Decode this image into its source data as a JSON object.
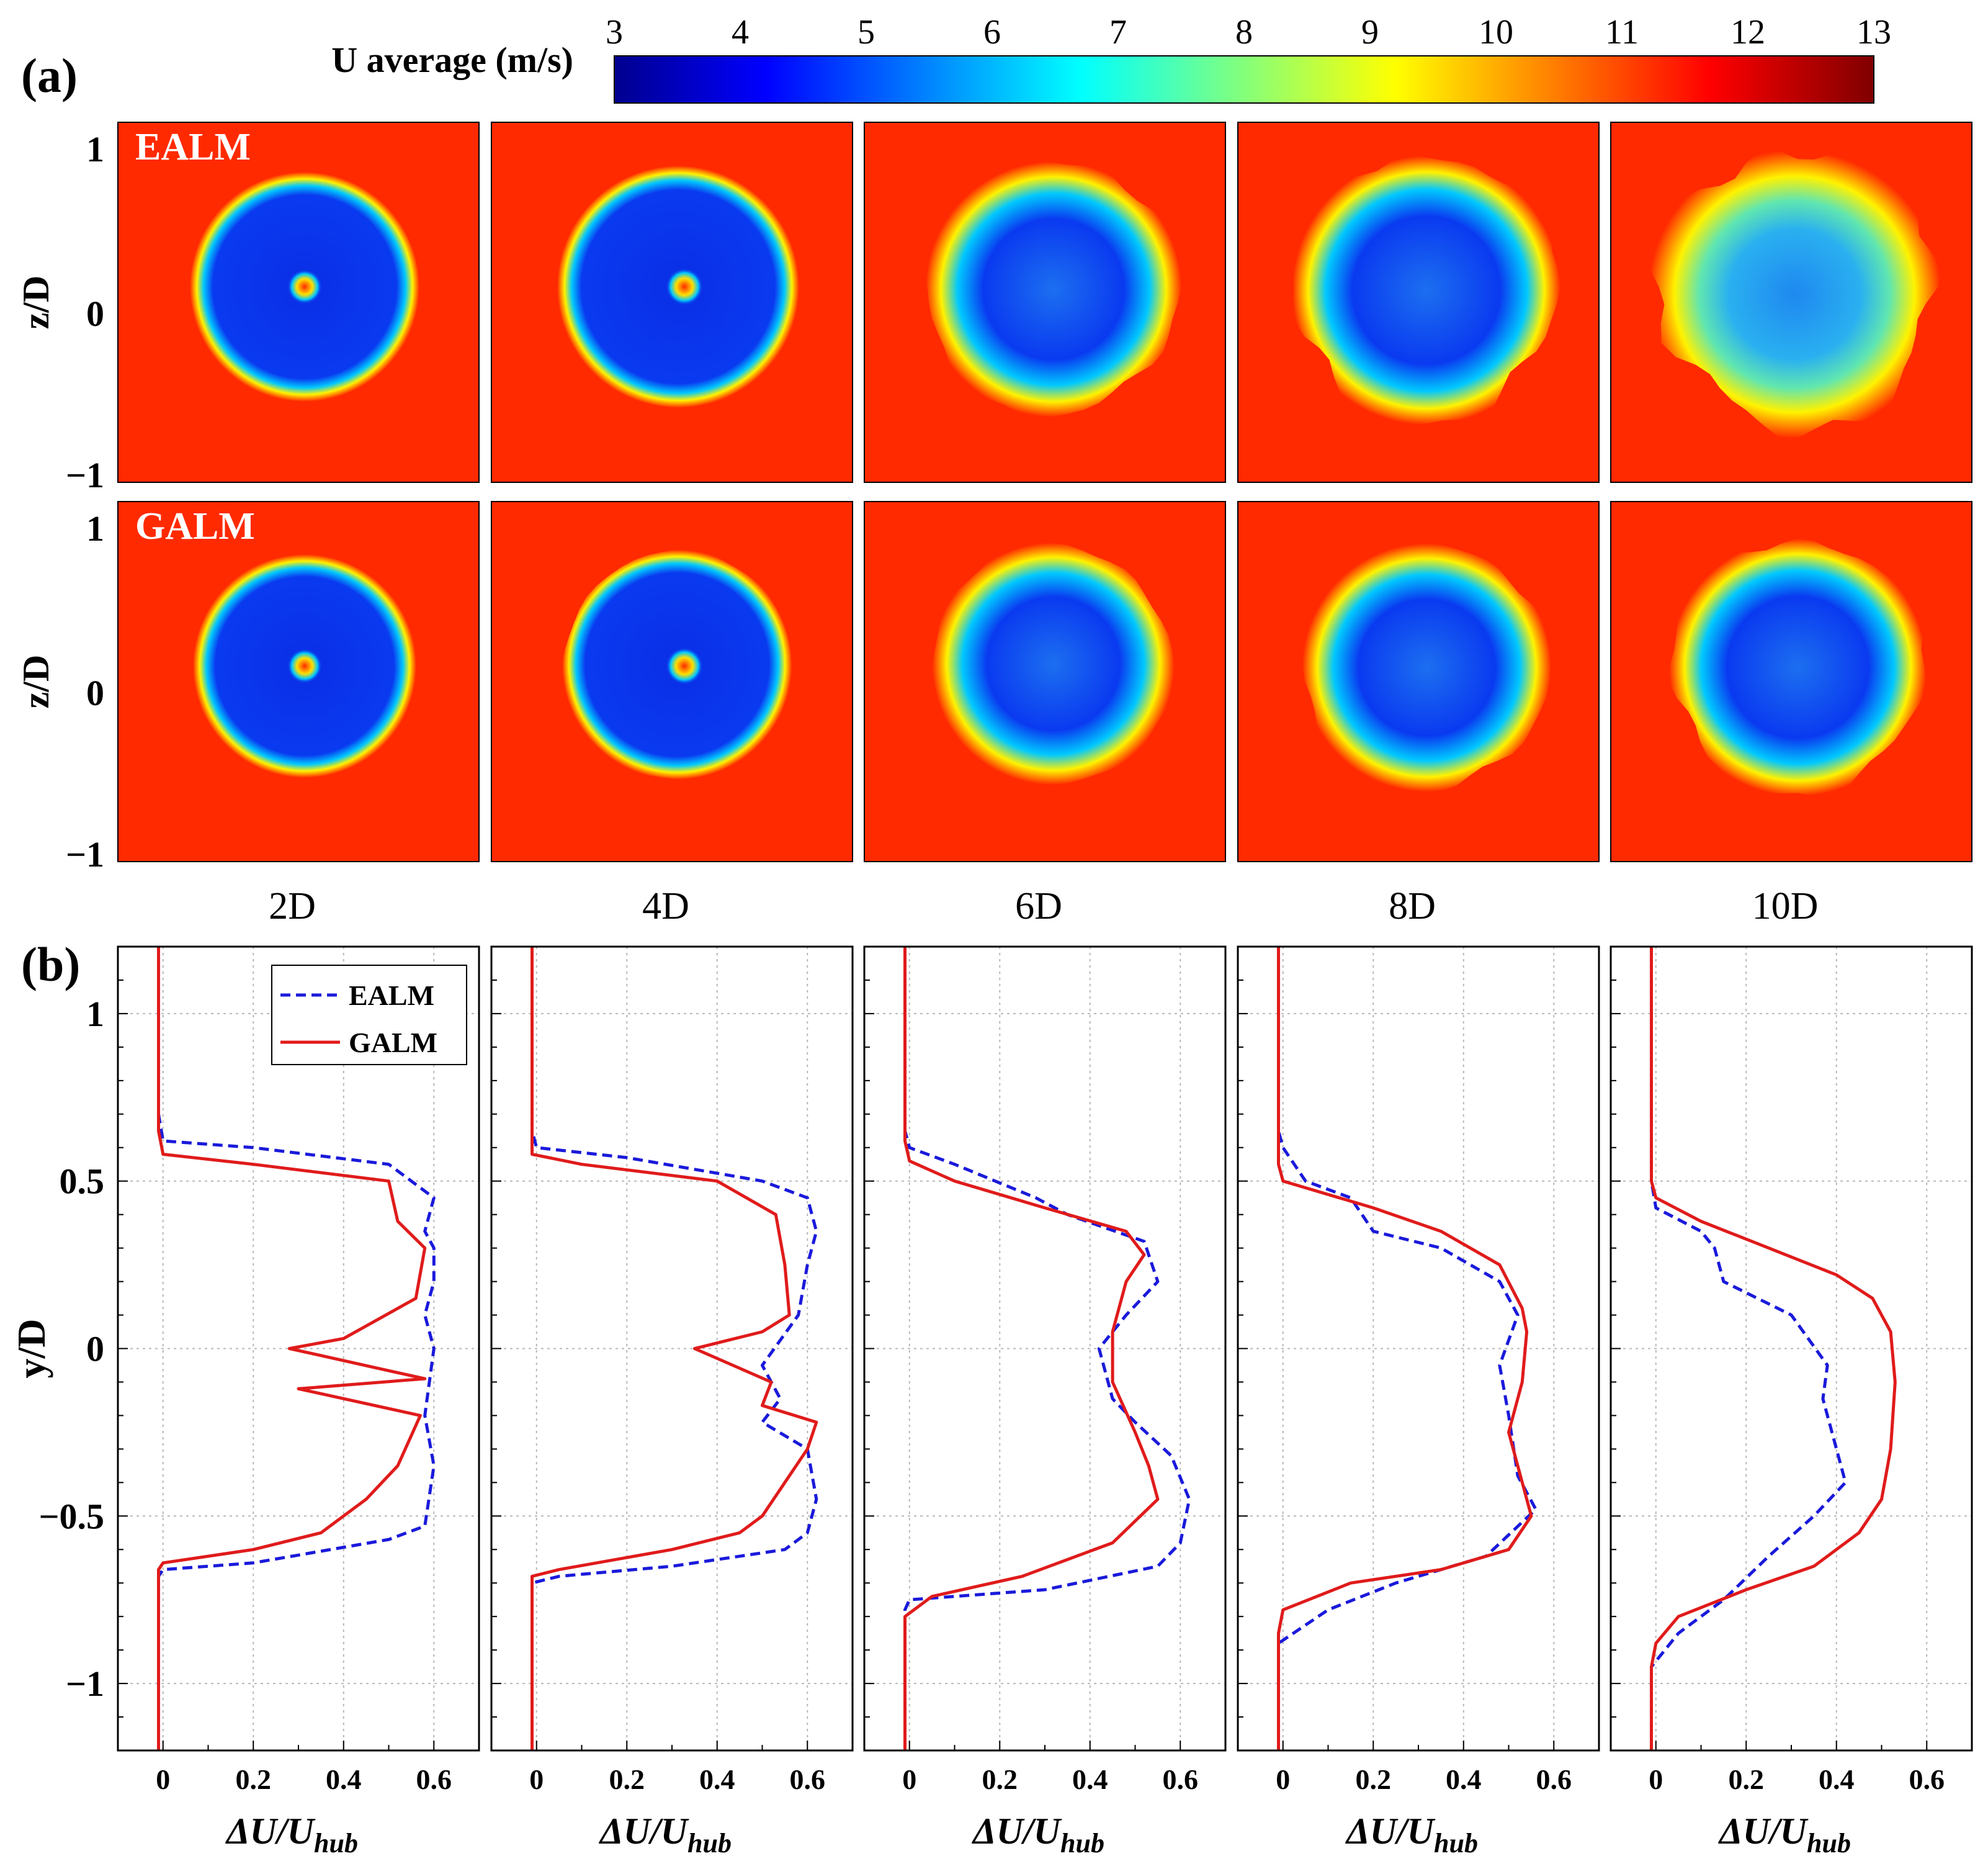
{
  "panel_labels": {
    "a": "(a)",
    "b": "(b)"
  },
  "colorbar": {
    "title": "U average (m/s)",
    "ticks": [
      "3",
      "4",
      "5",
      "6",
      "7",
      "8",
      "9",
      "10",
      "11",
      "12",
      "13"
    ],
    "colormap": [
      "#00008f",
      "#0000ff",
      "#00ffff",
      "#ffff00",
      "#ff0000",
      "#800000"
    ]
  },
  "contours": {
    "rows": [
      {
        "label": "EALM",
        "ylabel": "z/D"
      },
      {
        "label": "GALM",
        "ylabel": "z/D"
      }
    ],
    "distances": [
      "2D",
      "4D",
      "6D",
      "8D",
      "10D"
    ],
    "ytick_labels": [
      "1",
      "0",
      "−1"
    ],
    "background_color": "#ff2a00",
    "wake_color": "#0a2ee6"
  },
  "chart_data": {
    "type": "line",
    "x_axis_label": "ΔU/U",
    "x_axis_subscript": "hub",
    "y_axis_label": "y/D",
    "xlim": [
      -0.1,
      0.7
    ],
    "ylim": [
      -1.2,
      1.2
    ],
    "xtick_labels": [
      "0",
      "0.2",
      "0.4",
      "0.6"
    ],
    "ytick_labels": [
      "1",
      "0.5",
      "0",
      "−0.5",
      "−1"
    ],
    "legend": [
      {
        "name": "EALM",
        "color": "#1a1adb",
        "style": "dashed"
      },
      {
        "name": "GALM",
        "color": "#e01b1b",
        "style": "solid"
      }
    ],
    "panels": [
      {
        "distance": "2D",
        "EALM": [
          [
            -0.01,
            -1.2
          ],
          [
            -0.01,
            -0.68
          ],
          [
            0.0,
            -0.66
          ],
          [
            0.2,
            -0.64
          ],
          [
            0.5,
            -0.57
          ],
          [
            0.58,
            -0.53
          ],
          [
            0.59,
            -0.44
          ],
          [
            0.6,
            -0.35
          ],
          [
            0.58,
            -0.2
          ],
          [
            0.6,
            0.0
          ],
          [
            0.58,
            0.1
          ],
          [
            0.6,
            0.2
          ],
          [
            0.6,
            0.3
          ],
          [
            0.58,
            0.35
          ],
          [
            0.6,
            0.45
          ],
          [
            0.5,
            0.55
          ],
          [
            0.2,
            0.6
          ],
          [
            0.0,
            0.62
          ],
          [
            -0.01,
            0.7
          ],
          [
            -0.01,
            1.2
          ]
        ],
        "GALM": [
          [
            -0.01,
            -1.2
          ],
          [
            -0.01,
            -0.66
          ],
          [
            0.0,
            -0.64
          ],
          [
            0.2,
            -0.6
          ],
          [
            0.35,
            -0.55
          ],
          [
            0.45,
            -0.45
          ],
          [
            0.52,
            -0.35
          ],
          [
            0.57,
            -0.2
          ],
          [
            0.3,
            -0.12
          ],
          [
            0.58,
            -0.09
          ],
          [
            0.28,
            0.0
          ],
          [
            0.4,
            0.03
          ],
          [
            0.56,
            0.15
          ],
          [
            0.58,
            0.3
          ],
          [
            0.52,
            0.38
          ],
          [
            0.5,
            0.5
          ],
          [
            0.2,
            0.55
          ],
          [
            0.0,
            0.58
          ],
          [
            -0.01,
            0.65
          ],
          [
            -0.01,
            1.2
          ]
        ]
      },
      {
        "distance": "4D",
        "EALM": [
          [
            -0.01,
            -1.2
          ],
          [
            -0.01,
            -0.7
          ],
          [
            0.05,
            -0.68
          ],
          [
            0.3,
            -0.65
          ],
          [
            0.55,
            -0.6
          ],
          [
            0.6,
            -0.55
          ],
          [
            0.62,
            -0.45
          ],
          [
            0.6,
            -0.3
          ],
          [
            0.5,
            -0.22
          ],
          [
            0.54,
            -0.15
          ],
          [
            0.5,
            -0.05
          ],
          [
            0.58,
            0.1
          ],
          [
            0.6,
            0.25
          ],
          [
            0.62,
            0.35
          ],
          [
            0.6,
            0.45
          ],
          [
            0.5,
            0.5
          ],
          [
            0.2,
            0.57
          ],
          [
            0.0,
            0.6
          ],
          [
            -0.01,
            0.65
          ],
          [
            -0.01,
            1.2
          ]
        ],
        "GALM": [
          [
            -0.01,
            -1.2
          ],
          [
            -0.01,
            -0.68
          ],
          [
            0.05,
            -0.66
          ],
          [
            0.3,
            -0.6
          ],
          [
            0.45,
            -0.55
          ],
          [
            0.5,
            -0.5
          ],
          [
            0.55,
            -0.4
          ],
          [
            0.6,
            -0.3
          ],
          [
            0.62,
            -0.22
          ],
          [
            0.5,
            -0.17
          ],
          [
            0.52,
            -0.1
          ],
          [
            0.35,
            0.0
          ],
          [
            0.5,
            0.05
          ],
          [
            0.56,
            0.1
          ],
          [
            0.55,
            0.25
          ],
          [
            0.53,
            0.4
          ],
          [
            0.4,
            0.5
          ],
          [
            0.1,
            0.55
          ],
          [
            -0.01,
            0.58
          ],
          [
            -0.01,
            1.2
          ]
        ]
      },
      {
        "distance": "6D",
        "EALM": [
          [
            -0.01,
            -1.2
          ],
          [
            -0.01,
            -0.78
          ],
          [
            0.0,
            -0.75
          ],
          [
            0.3,
            -0.72
          ],
          [
            0.55,
            -0.65
          ],
          [
            0.6,
            -0.58
          ],
          [
            0.62,
            -0.45
          ],
          [
            0.58,
            -0.32
          ],
          [
            0.5,
            -0.22
          ],
          [
            0.45,
            -0.15
          ],
          [
            0.42,
            0.0
          ],
          [
            0.48,
            0.1
          ],
          [
            0.55,
            0.2
          ],
          [
            0.52,
            0.32
          ],
          [
            0.35,
            0.4
          ],
          [
            0.28,
            0.45
          ],
          [
            0.1,
            0.55
          ],
          [
            0.0,
            0.6
          ],
          [
            -0.01,
            0.65
          ],
          [
            -0.01,
            1.2
          ]
        ],
        "GALM": [
          [
            -0.01,
            -1.2
          ],
          [
            -0.01,
            -0.8
          ],
          [
            0.05,
            -0.74
          ],
          [
            0.25,
            -0.68
          ],
          [
            0.45,
            -0.58
          ],
          [
            0.55,
            -0.45
          ],
          [
            0.53,
            -0.35
          ],
          [
            0.5,
            -0.25
          ],
          [
            0.45,
            -0.1
          ],
          [
            0.45,
            0.05
          ],
          [
            0.48,
            0.2
          ],
          [
            0.52,
            0.28
          ],
          [
            0.48,
            0.35
          ],
          [
            0.3,
            0.42
          ],
          [
            0.1,
            0.5
          ],
          [
            0.0,
            0.56
          ],
          [
            -0.01,
            0.62
          ],
          [
            -0.01,
            1.2
          ]
        ]
      },
      {
        "distance": "8D",
        "EALM": [
          [
            -0.01,
            -1.2
          ],
          [
            -0.01,
            -0.88
          ],
          [
            0.1,
            -0.78
          ],
          [
            0.25,
            -0.7
          ],
          [
            0.45,
            -0.62
          ],
          [
            0.56,
            -0.48
          ],
          [
            0.52,
            -0.38
          ],
          [
            0.5,
            -0.2
          ],
          [
            0.48,
            -0.05
          ],
          [
            0.52,
            0.1
          ],
          [
            0.48,
            0.2
          ],
          [
            0.35,
            0.3
          ],
          [
            0.2,
            0.35
          ],
          [
            0.15,
            0.45
          ],
          [
            0.05,
            0.5
          ],
          [
            0.0,
            0.6
          ],
          [
            -0.01,
            0.65
          ],
          [
            -0.01,
            1.2
          ]
        ],
        "GALM": [
          [
            -0.01,
            -1.2
          ],
          [
            -0.01,
            -0.85
          ],
          [
            0.0,
            -0.78
          ],
          [
            0.15,
            -0.7
          ],
          [
            0.35,
            -0.66
          ],
          [
            0.5,
            -0.6
          ],
          [
            0.55,
            -0.5
          ],
          [
            0.52,
            -0.35
          ],
          [
            0.5,
            -0.25
          ],
          [
            0.53,
            -0.1
          ],
          [
            0.54,
            0.05
          ],
          [
            0.53,
            0.12
          ],
          [
            0.48,
            0.25
          ],
          [
            0.35,
            0.35
          ],
          [
            0.2,
            0.42
          ],
          [
            0.05,
            0.48
          ],
          [
            0.0,
            0.5
          ],
          [
            -0.01,
            0.55
          ],
          [
            -0.01,
            1.2
          ]
        ]
      },
      {
        "distance": "10D",
        "EALM": [
          [
            -0.01,
            -1.2
          ],
          [
            -0.01,
            -0.95
          ],
          [
            0.05,
            -0.85
          ],
          [
            0.15,
            -0.75
          ],
          [
            0.25,
            -0.62
          ],
          [
            0.35,
            -0.5
          ],
          [
            0.42,
            -0.4
          ],
          [
            0.4,
            -0.3
          ],
          [
            0.37,
            -0.15
          ],
          [
            0.38,
            -0.05
          ],
          [
            0.3,
            0.1
          ],
          [
            0.15,
            0.2
          ],
          [
            0.13,
            0.3
          ],
          [
            0.1,
            0.35
          ],
          [
            0.0,
            0.42
          ],
          [
            -0.01,
            0.5
          ],
          [
            -0.01,
            1.2
          ]
        ],
        "GALM": [
          [
            -0.01,
            -1.2
          ],
          [
            -0.01,
            -0.95
          ],
          [
            0.0,
            -0.88
          ],
          [
            0.05,
            -0.8
          ],
          [
            0.2,
            -0.72
          ],
          [
            0.35,
            -0.65
          ],
          [
            0.45,
            -0.55
          ],
          [
            0.5,
            -0.45
          ],
          [
            0.52,
            -0.3
          ],
          [
            0.53,
            -0.1
          ],
          [
            0.52,
            0.05
          ],
          [
            0.48,
            0.15
          ],
          [
            0.4,
            0.22
          ],
          [
            0.25,
            0.3
          ],
          [
            0.1,
            0.38
          ],
          [
            0.0,
            0.45
          ],
          [
            -0.01,
            0.5
          ],
          [
            -0.01,
            1.2
          ]
        ]
      }
    ]
  }
}
